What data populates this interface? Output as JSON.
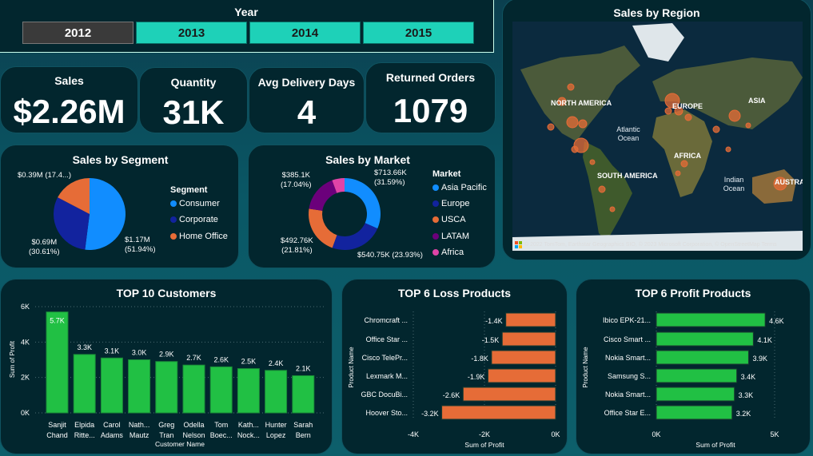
{
  "year_slicer": {
    "title": "Year",
    "options": [
      "2012",
      "2013",
      "2014",
      "2015"
    ],
    "selected": "2012"
  },
  "kpis": [
    {
      "label": "Sales",
      "value": "$2.26M"
    },
    {
      "label": "Quantity",
      "value": "31K"
    },
    {
      "label": "Avg Delivery Days",
      "value": "4"
    },
    {
      "label": "Returned Orders",
      "value": "1079"
    }
  ],
  "map": {
    "title": "Sales by Region",
    "continents": [
      "NORTH AMERICA",
      "EUROPE",
      "ASIA",
      "AFRICA",
      "SOUTH AMERICA",
      "AUSTRALIA"
    ],
    "oceans": [
      "Atlantic Ocean",
      "Indian Ocean"
    ],
    "attribution": "© 2022 TomTom, Earthstar Geographics SIO, © 2023 Microsoft Corporation, © OpenStreetMap  Terms",
    "brand": "Microsoft Bing"
  },
  "colors": {
    "blue": "#118dff",
    "navy": "#12239e",
    "orange": "#e66c37",
    "purple": "#6b007b",
    "pink": "#e044a7",
    "green": "#21c044",
    "teal": "#1ed1b8"
  },
  "chart_data": [
    {
      "type": "pie",
      "title": "Sales by Segment",
      "legend_title": "Segment",
      "categories": [
        "Consumer",
        "Corporate",
        "Home Office"
      ],
      "values": [
        1.17,
        0.69,
        0.39
      ],
      "percents": [
        51.94,
        30.61,
        17.45
      ],
      "labels": [
        "$1.17M\n(51.94%)",
        "$0.69M\n(30.61%)",
        "$0.39M (17.4...)"
      ],
      "colors": [
        "#118dff",
        "#12239e",
        "#e66c37"
      ]
    },
    {
      "type": "pie",
      "title": "Sales by Market",
      "legend_title": "Market",
      "categories": [
        "Asia Pacific",
        "Europe",
        "USCA",
        "LATAM",
        "Africa"
      ],
      "values": [
        713.66,
        540.75,
        492.76,
        385.1,
        127.0
      ],
      "percents": [
        31.59,
        23.93,
        21.81,
        17.04,
        5.63
      ],
      "labels": [
        "$713.66K\n(31.59%)",
        "$540.75K (23.93%)",
        "$492.76K\n(21.81%)",
        "$385.1K\n(17.04%)",
        ""
      ],
      "colors": [
        "#118dff",
        "#12239e",
        "#e66c37",
        "#6b007b",
        "#e044a7"
      ]
    },
    {
      "type": "bar",
      "title": "TOP 10 Customers",
      "xlabel": "Customer Name",
      "ylabel": "Sum of Profit",
      "ylim": [
        0,
        6
      ],
      "yticks": [
        "0K",
        "2K",
        "4K",
        "6K"
      ],
      "categories": [
        "Sanjit Chand",
        "Elpida Ritte...",
        "Carol Adams",
        "Nath... Mautz",
        "Greg Tran",
        "Odella Nelson",
        "Tom Boec...",
        "Kath... Nock...",
        "Hunter Lopez",
        "Sarah Bern"
      ],
      "values": [
        5.7,
        3.3,
        3.1,
        3.0,
        2.9,
        2.7,
        2.6,
        2.5,
        2.4,
        2.1
      ],
      "data_labels": [
        "5.7K",
        "3.3K",
        "3.1K",
        "3.0K",
        "2.9K",
        "2.7K",
        "2.6K",
        "2.5K",
        "2.4K",
        "2.1K"
      ]
    },
    {
      "type": "bar",
      "orientation": "horizontal",
      "title": "TOP 6 Loss Products",
      "xlabel": "Sum of Profit",
      "ylabel": "Product Name",
      "xlim": [
        -4,
        0
      ],
      "xticks": [
        "-4K",
        "-2K",
        "0K"
      ],
      "categories": [
        "Chromcraft ...",
        "Office Star ...",
        "Cisco TelePr...",
        "Lexmark M...",
        "GBC DocuBi...",
        "Hoover Sto..."
      ],
      "values": [
        -1.4,
        -1.5,
        -1.8,
        -1.9,
        -2.6,
        -3.2
      ],
      "data_labels": [
        "-1.4K",
        "-1.5K",
        "-1.8K",
        "-1.9K",
        "-2.6K",
        "-3.2K"
      ]
    },
    {
      "type": "bar",
      "orientation": "horizontal",
      "title": "TOP 6 Profit Products",
      "xlabel": "Sum of Profit",
      "ylabel": "Product Name",
      "xlim": [
        0,
        5
      ],
      "xticks": [
        "0K",
        "5K"
      ],
      "categories": [
        "Ibico EPK-21...",
        "Cisco Smart ...",
        "Nokia Smart...",
        "Samsung S...",
        "Nokia Smart...",
        "Office Star E..."
      ],
      "values": [
        4.6,
        4.1,
        3.9,
        3.4,
        3.3,
        3.2
      ],
      "data_labels": [
        "4.6K",
        "4.1K",
        "3.9K",
        "3.4K",
        "3.3K",
        "3.2K"
      ]
    }
  ]
}
